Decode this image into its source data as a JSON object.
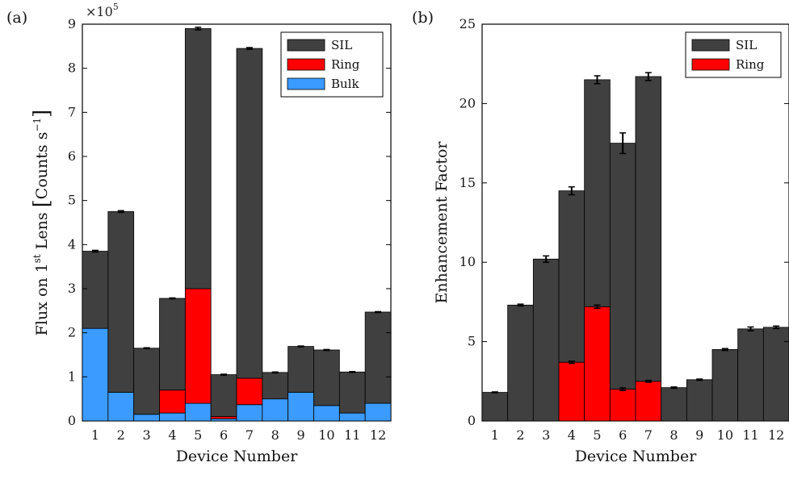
{
  "chart_data": [
    {
      "type": "bar",
      "stacked": true,
      "panel_label": "(a)",
      "title": "",
      "xlabel": "Device Number",
      "ylabel": "Flux on 1st Lens [Counts s⁻¹]",
      "ylabel_parts": {
        "pre": "Flux on 1",
        "sup": "st",
        "mid": " Lens ",
        "open": "[",
        "unit": "Counts s",
        "unit_sup": "−1",
        "close": "]"
      },
      "scale_note": "×10",
      "scale_exp": "5",
      "categories": [
        "1",
        "2",
        "3",
        "4",
        "5",
        "6",
        "7",
        "8",
        "9",
        "10",
        "11",
        "12"
      ],
      "ylim": [
        0,
        9
      ],
      "yticks": [
        "0",
        "1",
        "2",
        "3",
        "4",
        "5",
        "6",
        "7",
        "8",
        "9"
      ],
      "legend_position": "top-right",
      "series": [
        {
          "name": "Bulk",
          "color": "#3b9bff",
          "values": [
            2.1,
            0.65,
            0.15,
            0.18,
            0.4,
            0.05,
            0.37,
            0.5,
            0.65,
            0.35,
            0.18,
            0.4
          ]
        },
        {
          "name": "Ring",
          "color": "#ff0000",
          "values": [
            0,
            0,
            0,
            0.52,
            2.6,
            0.05,
            0.6,
            0,
            0,
            0,
            0,
            0
          ]
        },
        {
          "name": "SIL",
          "color": "#404040",
          "values": [
            1.75,
            4.1,
            1.5,
            2.08,
            5.9,
            0.95,
            7.48,
            0.6,
            1.04,
            1.26,
            0.93,
            2.07
          ]
        }
      ],
      "totals": [
        3.85,
        4.75,
        1.65,
        2.78,
        8.9,
        1.05,
        8.45,
        1.1,
        1.69,
        1.61,
        1.11,
        2.47
      ],
      "errors": [
        0.02,
        0.02,
        0.01,
        0.01,
        0.03,
        0.01,
        0.02,
        0.01,
        0.01,
        0.01,
        0.01,
        0.01
      ]
    },
    {
      "type": "bar",
      "stacked": true,
      "panel_label": "(b)",
      "title": "",
      "xlabel": "Device Number",
      "ylabel": "Enhancement Factor",
      "categories": [
        "1",
        "2",
        "3",
        "4",
        "5",
        "6",
        "7",
        "8",
        "9",
        "10",
        "11",
        "12"
      ],
      "ylim": [
        0,
        25
      ],
      "yticks": [
        "0",
        "5",
        "10",
        "15",
        "20",
        "25"
      ],
      "legend_position": "top-right",
      "series": [
        {
          "name": "Ring",
          "color": "#ff0000",
          "values": [
            0,
            0,
            0,
            3.7,
            7.2,
            2.0,
            2.5,
            0,
            0,
            0,
            0,
            0
          ]
        },
        {
          "name": "SIL",
          "color": "#404040",
          "values": [
            1.8,
            7.3,
            10.2,
            10.8,
            14.3,
            15.5,
            19.2,
            2.1,
            2.6,
            4.5,
            5.8,
            5.9
          ]
        }
      ],
      "totals": [
        1.8,
        7.3,
        10.2,
        14.5,
        21.5,
        17.5,
        21.7,
        2.1,
        2.6,
        4.5,
        5.8,
        5.9
      ],
      "errors": [
        0.03,
        0.06,
        0.2,
        0.25,
        0.25,
        0.65,
        0.25,
        0.04,
        0.04,
        0.06,
        0.12,
        0.08
      ],
      "ring_errors": [
        0,
        0,
        0,
        0.07,
        0.1,
        0.08,
        0.06,
        0,
        0,
        0,
        0,
        0
      ]
    }
  ]
}
